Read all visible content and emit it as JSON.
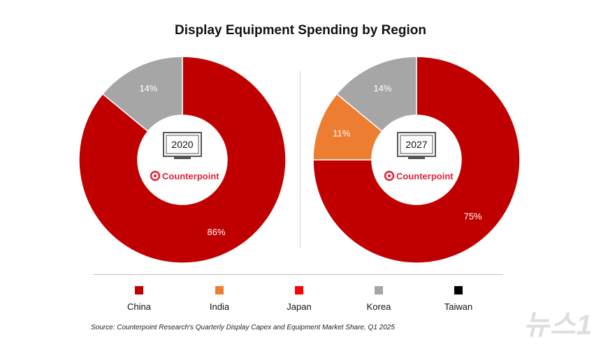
{
  "title": "Display Equipment Spending by Region",
  "source": "Source: Counterpoint Research's Quarterly Display Capex and Equipment Market Share, Q1 2025",
  "brand": "Counterpoint",
  "watermark": "뉴스1",
  "legend": [
    {
      "name": "China",
      "color": "#c00000"
    },
    {
      "name": "India",
      "color": "#ed7d31"
    },
    {
      "name": "Japan",
      "color": "#ff0000"
    },
    {
      "name": "Korea",
      "color": "#a6a6a6"
    },
    {
      "name": "Taiwan",
      "color": "#000000"
    }
  ],
  "chart_data": [
    {
      "type": "pie",
      "year": "2020",
      "slices": [
        {
          "name": "China",
          "value": 86,
          "label": "86%",
          "color": "#c00000"
        },
        {
          "name": "Korea",
          "value": 14,
          "label": "14%",
          "color": "#a6a6a6"
        }
      ]
    },
    {
      "type": "pie",
      "year": "2027",
      "slices": [
        {
          "name": "China",
          "value": 75,
          "label": "75%",
          "color": "#c00000"
        },
        {
          "name": "India",
          "value": 11,
          "label": "11%",
          "color": "#ed7d31"
        },
        {
          "name": "Korea",
          "value": 14,
          "label": "14%",
          "color": "#a6a6a6"
        }
      ]
    }
  ]
}
